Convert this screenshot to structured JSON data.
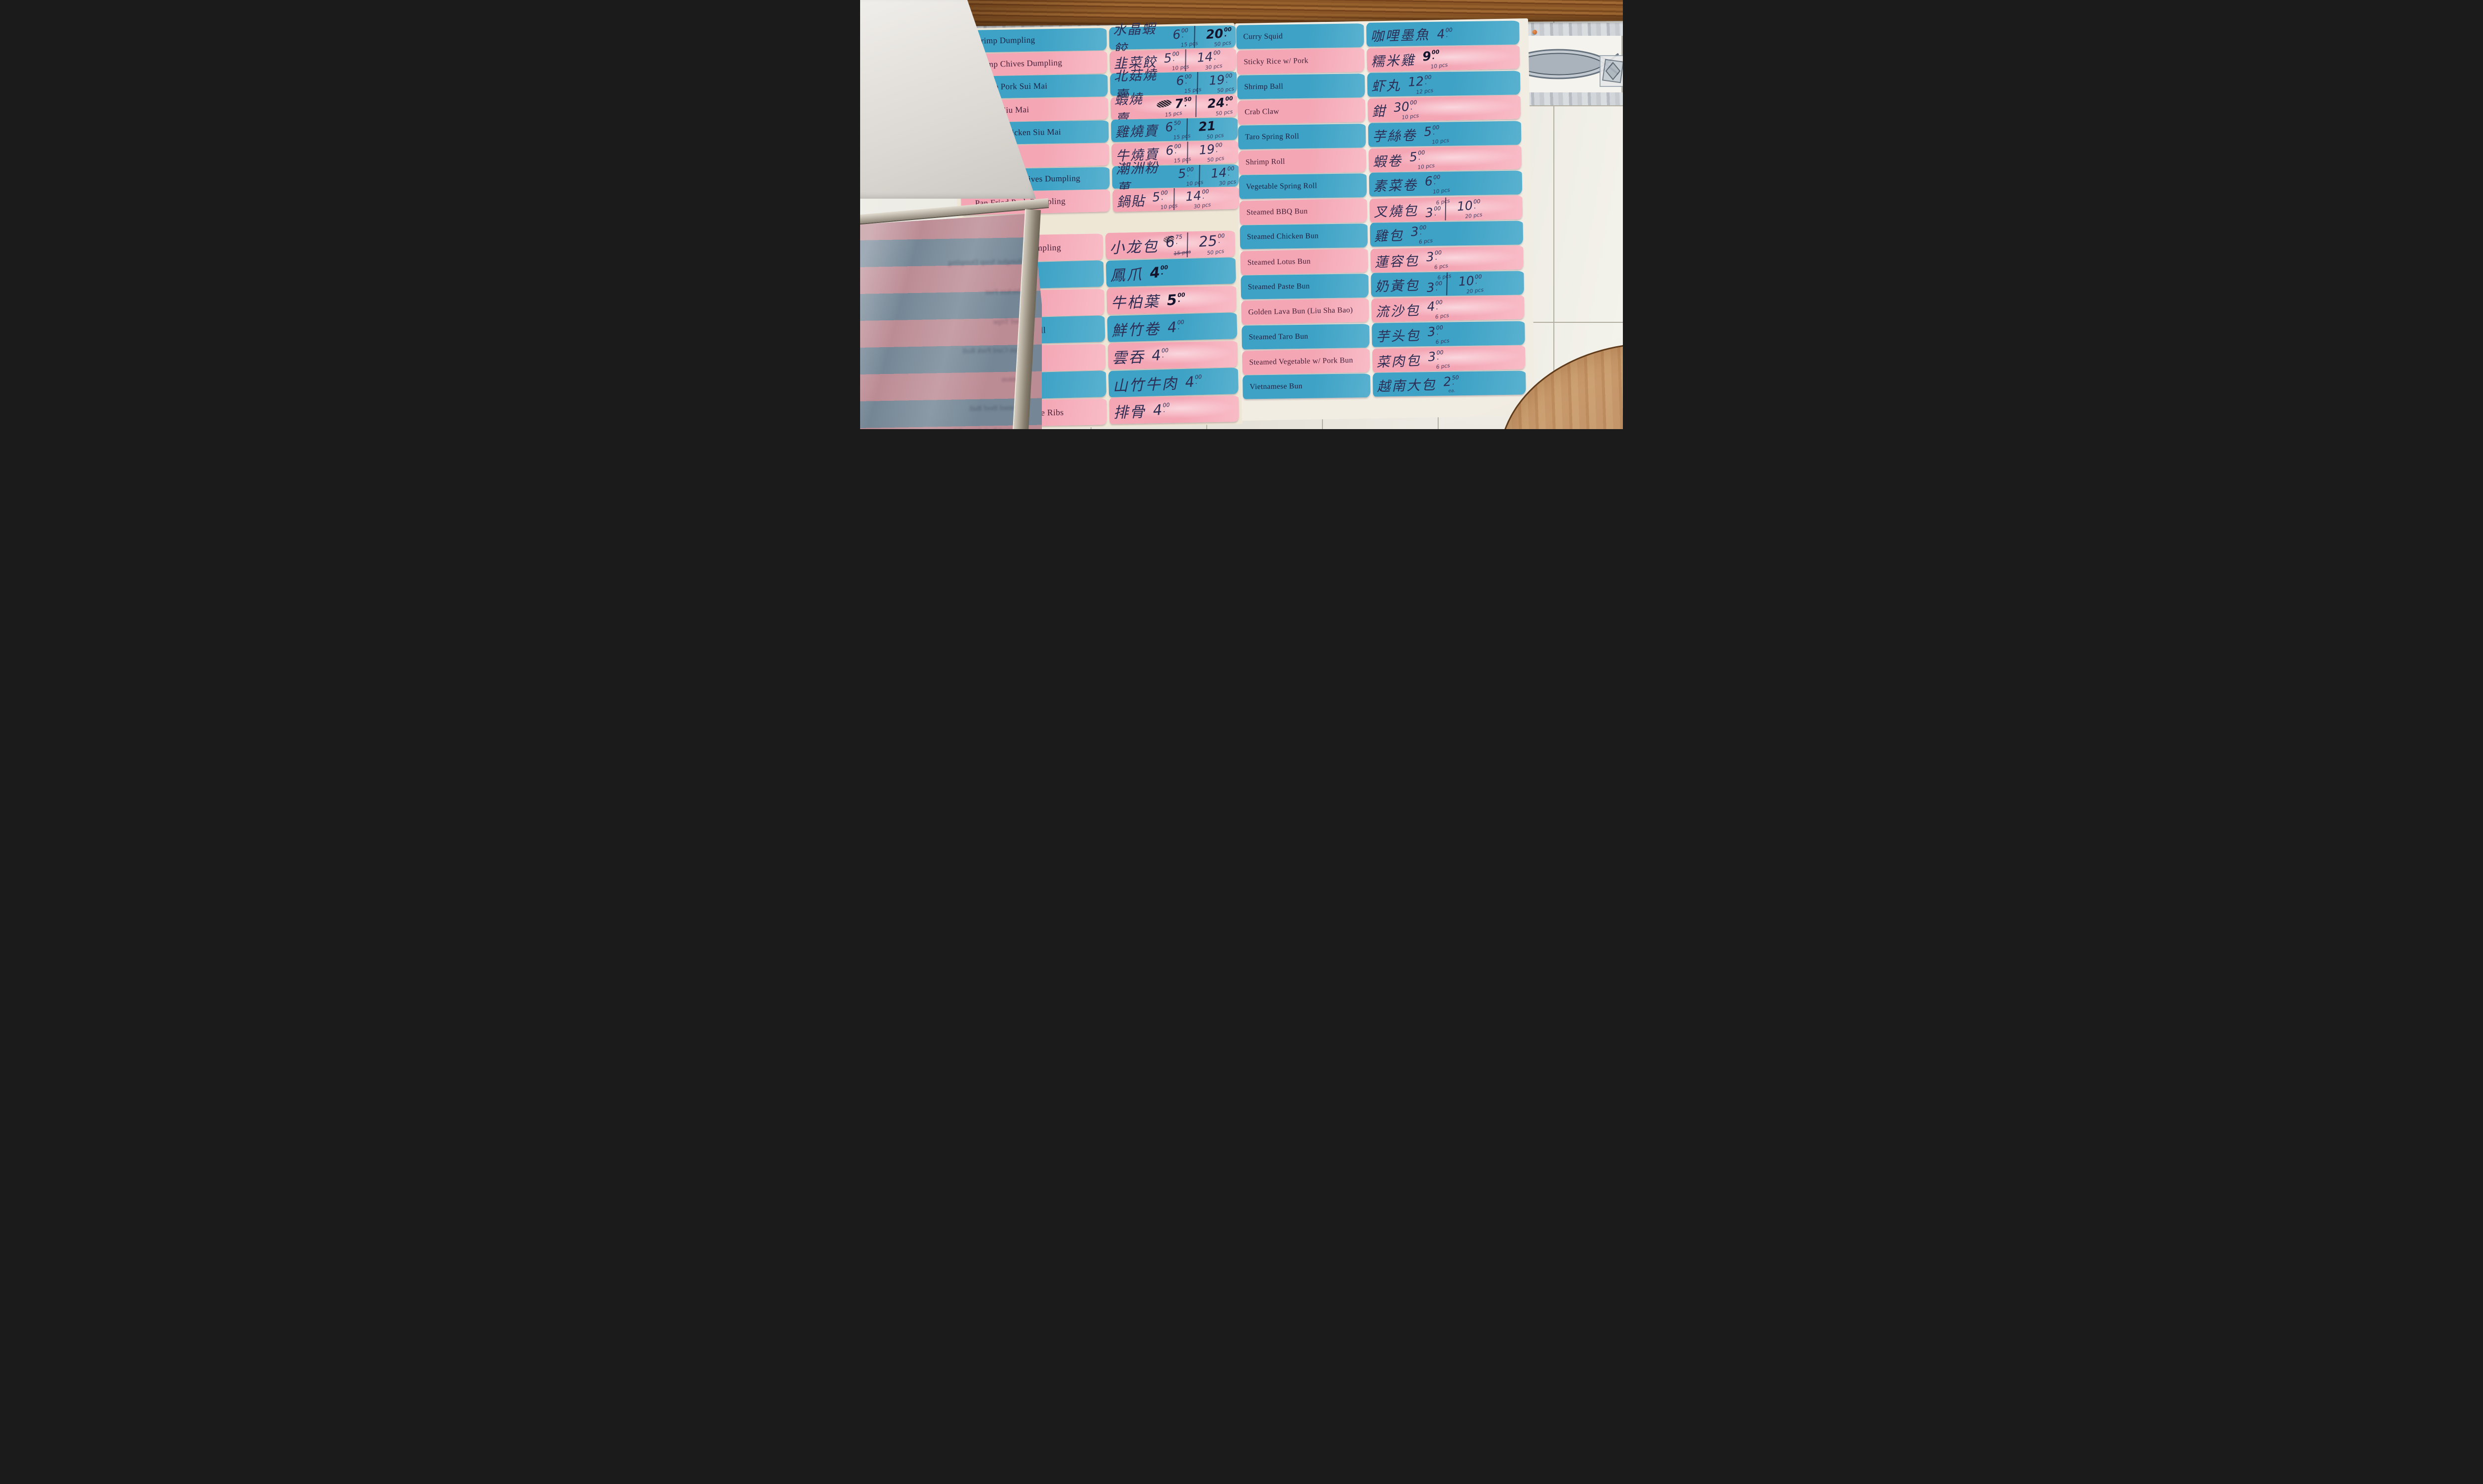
{
  "scene": {
    "type": "photo-of-restaurant-wall-menu",
    "colors": {
      "strip_pink": "#f4a6b5",
      "strip_blue": "#3da2c6",
      "ink": "#2e2e55",
      "ink_bold": "#14142c",
      "english_ink_on_blue": "#1d2142",
      "english_ink_on_pink": "#462038",
      "wall_tile": "#eceae3",
      "grout": "#b3afa3",
      "wood_beam": "#8a5526",
      "table_wood": "#c49568",
      "backing_paper": "#efe7d6",
      "marble_border": "#c7cbd0",
      "border_pattern": "#67737e",
      "pushpin": "#c35a17"
    }
  },
  "menu": {
    "left_top": [
      {
        "en": "Shrimp Dumpling",
        "zh": "水晶蝦餃",
        "color": "blue",
        "p1": "6.00",
        "q1": "15 pcs",
        "p2": "20.00",
        "q2": "50 pcs",
        "p2_bold": true
      },
      {
        "en": "Shrimp Chives Dumpling",
        "zh": "韭菜餃",
        "color": "pink",
        "p1": "5.00",
        "q1": "10 pcs",
        "p2": "14.00",
        "q2": "30 pcs"
      },
      {
        "en": "Shrimp Pork Sui Mai",
        "zh": "北菇燒賣",
        "color": "blue",
        "p1": "6.00",
        "q1": "15 pcs",
        "p2": "19.00",
        "q2": "50 pcs"
      },
      {
        "en": "Shrimp Siu Mai",
        "zh": "蝦燒賣",
        "color": "pink",
        "p1": "7.50",
        "q1": "15 pcs",
        "p2": "24.00",
        "q2": "50 pcs",
        "p1_bold": true,
        "p2_bold": true,
        "old_price_scribbled": true
      },
      {
        "en": "Shrimp Chicken Siu Mai",
        "zh": "雞燒賣",
        "color": "blue",
        "p1": "6.50",
        "q1": "15 pcs",
        "p2": "21",
        "q2": "50 pcs",
        "p2_bold": true
      },
      {
        "en": "Beef Siu Mai",
        "zh": "牛燒賣",
        "color": "pink",
        "p1": "6.00",
        "q1": "15 pcs",
        "p2": "19.00",
        "q2": "50 pcs"
      },
      {
        "en": "Chao Chow Chives Dumpling",
        "zh": "潮洲粉菓",
        "color": "blue",
        "p1": "5.00",
        "q1": "10 pcs",
        "p2": "14.00",
        "q2": "30 pcs"
      },
      {
        "en": "Pan Fried Pork Dumpling",
        "zh": "鍋貼",
        "color": "pink",
        "p1": "5.00",
        "q1": "10 pcs",
        "p2": "14.00",
        "q2": "30 pcs"
      }
    ],
    "left_bottom": [
      {
        "en": "Shanghai Soup Dumpling",
        "zh": "小龙包",
        "color": "pink",
        "p1": "6.75",
        "q1": "15 pcs",
        "q1_struck": true,
        "p1_scribbled": true,
        "p2": "25.00",
        "q2": "50 pcs"
      },
      {
        "en": "Chicken Feet",
        "zh": "鳳爪",
        "color": "blue",
        "p1": "4.00",
        "p1_bold": true
      },
      {
        "en": "Beef Tripe",
        "zh": "牛柏葉",
        "color": "pink",
        "p1": "5.00",
        "p1_bold": true
      },
      {
        "en": "Bean Curd Pork Roll",
        "zh": "鮮竹卷",
        "color": "blue",
        "p1": "4.00"
      },
      {
        "en": "Wonton",
        "zh": "雲吞",
        "color": "pink",
        "p1": "4.00"
      },
      {
        "en": "Steamed Beef Ball",
        "zh": "山竹牛肉",
        "color": "blue",
        "p1": "4.00"
      },
      {
        "en": "Steamed Pork Spare Ribs",
        "zh": "排骨",
        "color": "pink",
        "p1": "4.00"
      }
    ],
    "right": [
      {
        "en": "Curry Squid",
        "zh": "咖哩墨魚",
        "color": "blue",
        "p1": "4.00"
      },
      {
        "en": "Sticky Rice w/ Pork",
        "zh": "糯米雞",
        "color": "pink",
        "p1": "9.00",
        "p1_bold": true,
        "q1": "10 pcs"
      },
      {
        "en": "Shrimp Ball",
        "zh": "虾丸",
        "color": "blue",
        "p1": "12.00",
        "q1": "12 pcs"
      },
      {
        "en": "Crab Claw",
        "zh": "鉗",
        "color": "pink",
        "p1": "30.00",
        "q1": "10 pcs"
      },
      {
        "en": "Taro Spring Roll",
        "zh": "芋絲卷",
        "color": "blue",
        "p1": "5.00",
        "q1": "10 pcs"
      },
      {
        "en": "Shrimp Roll",
        "zh": "蝦卷",
        "color": "pink",
        "p1": "5.00",
        "q1": "10 pcs"
      },
      {
        "en": "Vegetable Spring Roll",
        "zh": "素菜卷",
        "color": "blue",
        "p1": "6.00",
        "q1": "10 pcs"
      },
      {
        "en": "Steamed BBQ Bun",
        "zh": "叉燒包",
        "color": "pink",
        "p1": "3.00",
        "q1": "6 pcs",
        "p2": "10.00",
        "q2": "20 pcs",
        "qty_above": true
      },
      {
        "en": "Steamed Chicken Bun",
        "zh": "雞包",
        "color": "blue",
        "p1": "3.00",
        "q1": "6 pcs"
      },
      {
        "en": "Steamed Lotus Bun",
        "zh": "蓮容包",
        "color": "pink",
        "p1": "3.00",
        "q1": "6 pcs"
      },
      {
        "en": "Steamed Paste Bun",
        "zh": "奶黃包",
        "color": "blue",
        "p1": "3.00",
        "q1": "6 pcs",
        "p2": "10.00",
        "q2": "20 pcs",
        "qty_above": true
      },
      {
        "en": "Golden Lava Bun (Liu Sha Bao)",
        "zh": "流沙包",
        "color": "pink",
        "p1": "4.00",
        "q1": "6 pcs"
      },
      {
        "en": "Steamed Taro Bun",
        "zh": "芋头包",
        "color": "blue",
        "p1": "3.00",
        "q1": "6 pcs"
      },
      {
        "en": "Steamed Vegetable w/ Pork Bun",
        "zh": "菜肉包",
        "color": "pink",
        "p1": "3.00",
        "q1": "6 pcs"
      },
      {
        "en": "Vietnamese Bun",
        "zh": "越南大包",
        "color": "blue",
        "p1": "2.50",
        "note": "ea."
      }
    ]
  }
}
